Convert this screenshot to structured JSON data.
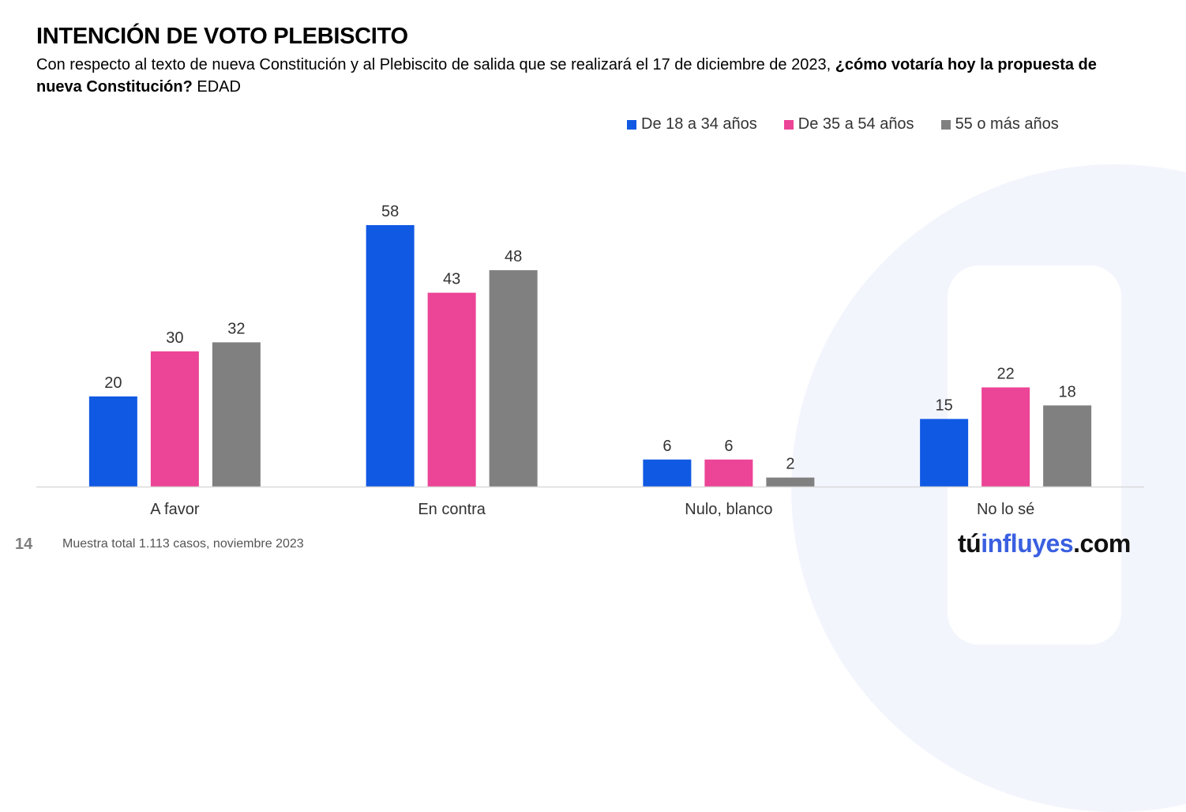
{
  "header": {
    "title": "INTENCIÓN DE VOTO PLEBISCITO",
    "subtitle_plain": "Con respecto al texto de nueva Constitución y al Plebiscito de salida que se realizará el 17 de diciembre de 2023, ",
    "subtitle_bold": "¿cómo votaría hoy la propuesta de nueva Constitución?",
    "subtitle_tail": " EDAD"
  },
  "footer": {
    "page_number": "14",
    "note": "Muestra total 1.113 casos, noviembre 2023"
  },
  "logo": {
    "part1": "tú",
    "part2": "influyes",
    "part3": ".com"
  },
  "chart_data": {
    "type": "bar",
    "title": "INTENCIÓN DE VOTO PLEBISCITO",
    "xlabel": "",
    "ylabel": "",
    "ylim": [
      0,
      58
    ],
    "grid": false,
    "legend_position": "top-right",
    "categories": [
      "A favor",
      "En contra",
      "Nulo, blanco",
      "No lo sé"
    ],
    "series": [
      {
        "name": "De 18 a 34 años",
        "color": "#1059e3",
        "values": [
          20,
          58,
          6,
          15
        ]
      },
      {
        "name": "De 35 a 54 años",
        "color": "#ec4496",
        "values": [
          30,
          43,
          6,
          22
        ]
      },
      {
        "name": "55 o más años",
        "color": "#808080",
        "values": [
          32,
          48,
          2,
          18
        ]
      }
    ]
  }
}
